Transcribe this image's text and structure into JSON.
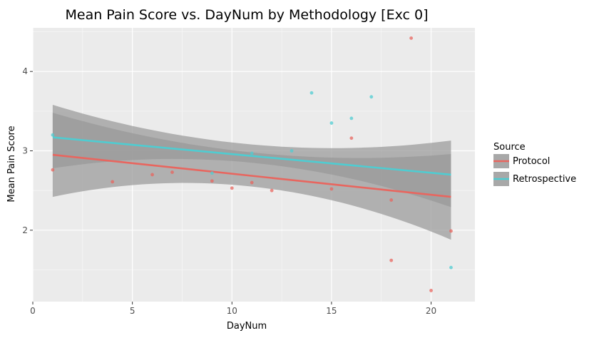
{
  "chart_data": {
    "type": "scatter",
    "title": "Mean Pain Score vs. DayNum by Methodology [Exc 0]",
    "xlabel": "DayNum",
    "ylabel": "Mean Pain Score",
    "xlim": [
      0,
      22.2
    ],
    "ylim": [
      1.1,
      4.55
    ],
    "x_ticks": [
      0,
      5,
      10,
      15,
      20
    ],
    "y_ticks": [
      2,
      3,
      4
    ],
    "x_tick_labels": [
      "0",
      "5",
      "10",
      "15",
      "20"
    ],
    "y_tick_labels": [
      "2",
      "3",
      "4"
    ],
    "grid": true,
    "legend": {
      "title": "Source",
      "position": "right"
    },
    "series": [
      {
        "name": "Protocol",
        "color": "#E8665F",
        "points": [
          {
            "x": 1,
            "y": 2.76
          },
          {
            "x": 4,
            "y": 2.61
          },
          {
            "x": 6,
            "y": 2.7
          },
          {
            "x": 7,
            "y": 2.73
          },
          {
            "x": 9,
            "y": 2.62
          },
          {
            "x": 10,
            "y": 2.53
          },
          {
            "x": 11,
            "y": 2.6
          },
          {
            "x": 12,
            "y": 2.5
          },
          {
            "x": 15,
            "y": 2.52
          },
          {
            "x": 16,
            "y": 3.16
          },
          {
            "x": 18,
            "y": 1.62
          },
          {
            "x": 18,
            "y": 2.38
          },
          {
            "x": 19,
            "y": 4.42
          },
          {
            "x": 20,
            "y": 1.24
          },
          {
            "x": 21,
            "y": 1.99
          }
        ],
        "fit": {
          "x": [
            1,
            21
          ],
          "y": [
            2.95,
            2.42
          ]
        },
        "band": {
          "x": [
            1,
            11,
            21
          ],
          "lower": [
            2.42,
            2.55,
            1.88
          ],
          "upper": [
            3.48,
            2.98,
            2.96
          ]
        }
      },
      {
        "name": "Retrospective",
        "color": "#4FCCD1",
        "points": [
          {
            "x": 1,
            "y": 3.2
          },
          {
            "x": 9,
            "y": 2.72
          },
          {
            "x": 11,
            "y": 2.97
          },
          {
            "x": 13,
            "y": 3.0
          },
          {
            "x": 14,
            "y": 3.73
          },
          {
            "x": 15,
            "y": 3.35
          },
          {
            "x": 16,
            "y": 3.41
          },
          {
            "x": 17,
            "y": 3.68
          },
          {
            "x": 21,
            "y": 1.53
          }
        ],
        "fit": {
          "x": [
            1,
            21
          ],
          "y": [
            3.17,
            2.7
          ]
        },
        "band": {
          "x": [
            1,
            11,
            21
          ],
          "lower": [
            2.78,
            2.85,
            2.29
          ],
          "upper": [
            3.58,
            3.08,
            3.13
          ]
        }
      }
    ]
  }
}
